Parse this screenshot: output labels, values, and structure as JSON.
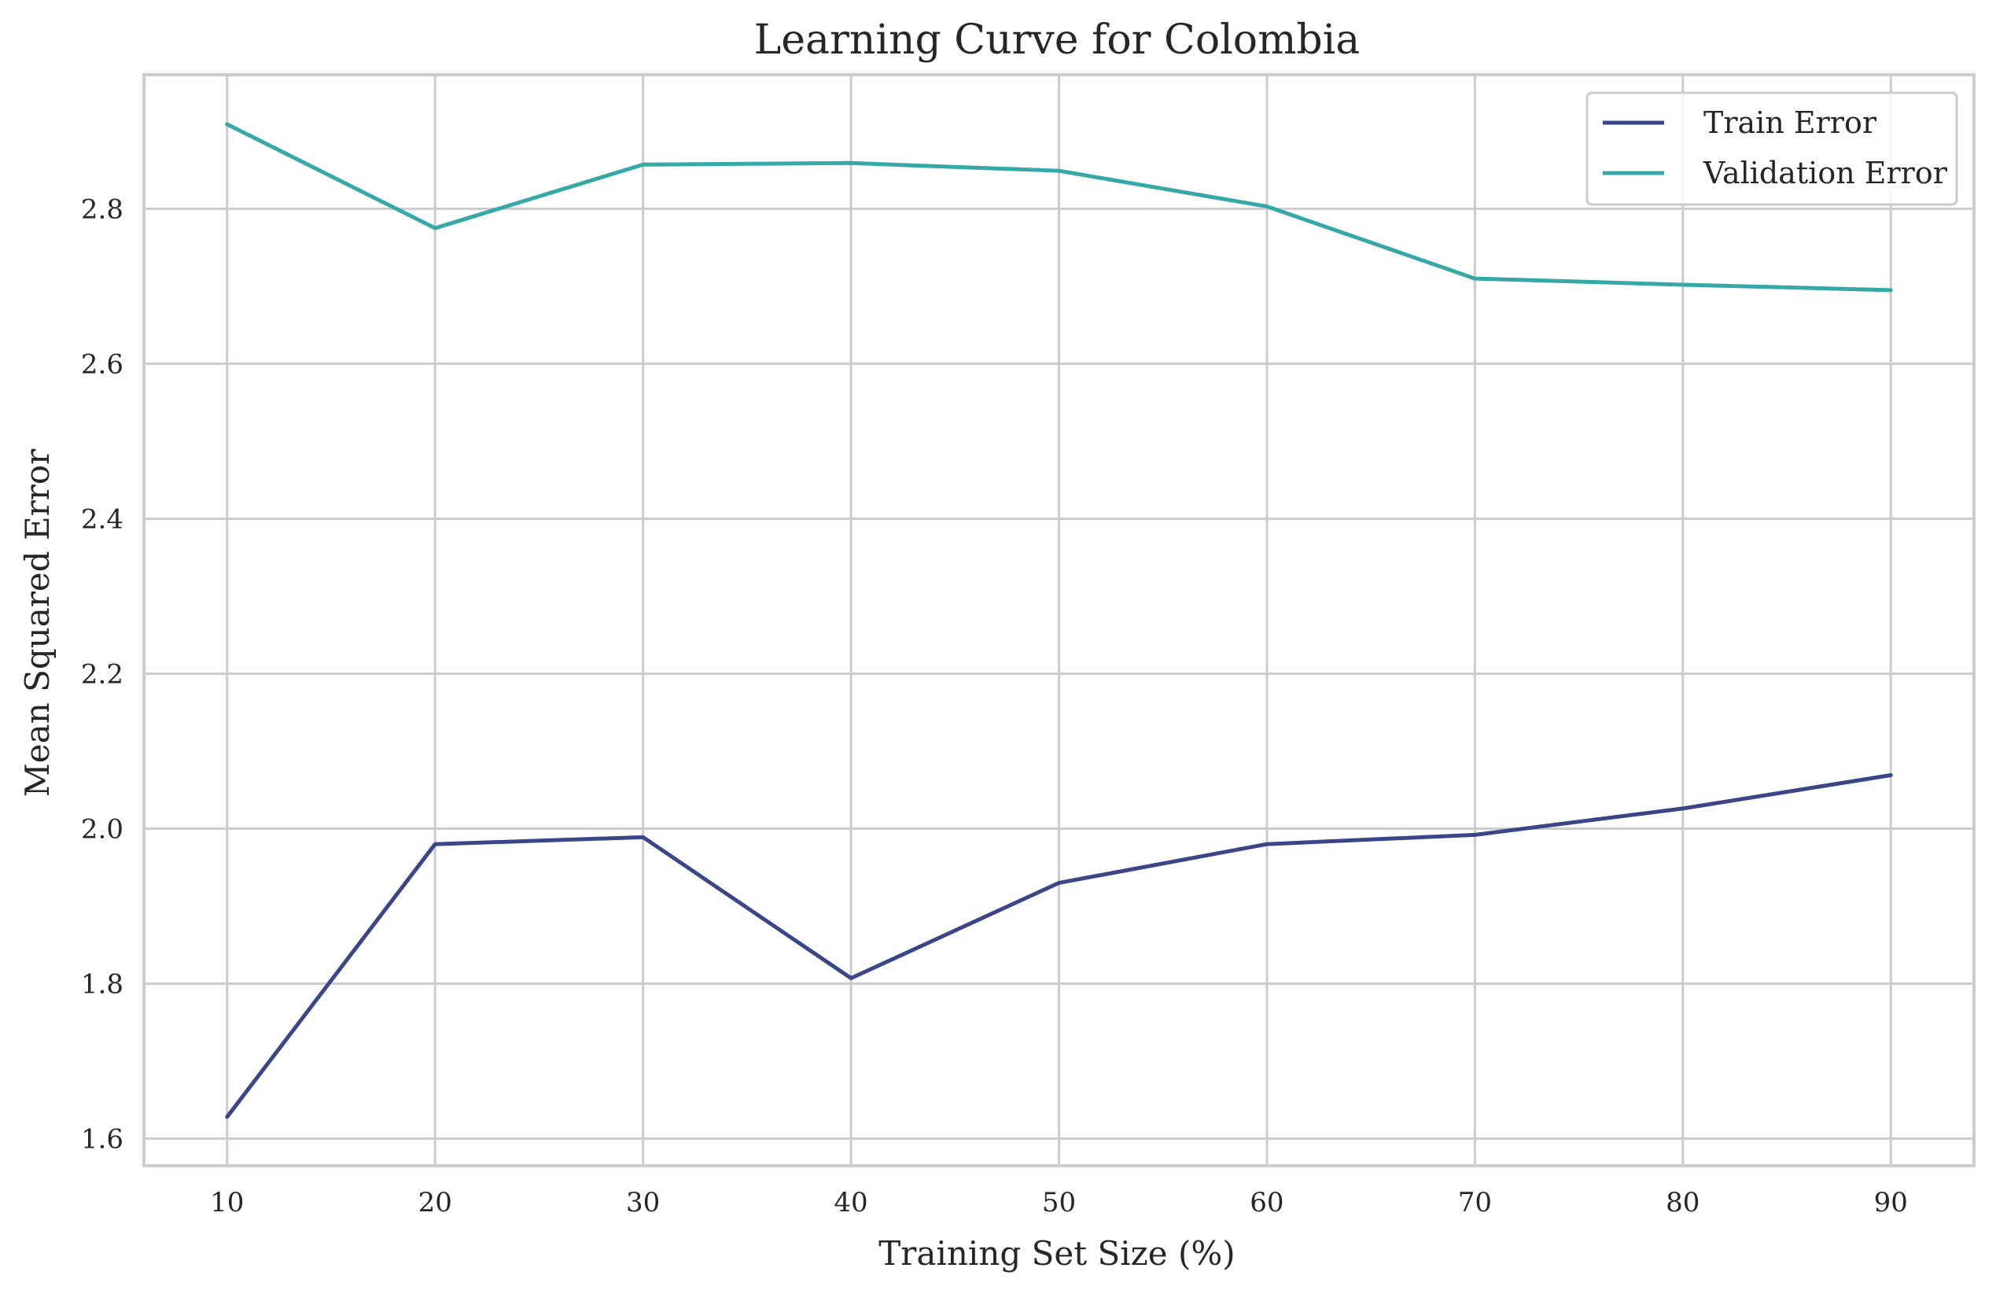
{
  "chart_data": {
    "type": "line",
    "title": "Learning Curve for Colombia",
    "xlabel": "Training Set Size (%)",
    "ylabel": "Mean Squared Error",
    "x": [
      10,
      20,
      30,
      40,
      50,
      60,
      70,
      80,
      90
    ],
    "x_ticks": [
      "10",
      "20",
      "30",
      "40",
      "50",
      "60",
      "70",
      "80",
      "90"
    ],
    "y_ticks": [
      "1.6",
      "1.8",
      "2.0",
      "2.2",
      "2.4",
      "2.6",
      "2.8"
    ],
    "xlim": [
      6,
      94
    ],
    "ylim": [
      1.565,
      2.973
    ],
    "grid": true,
    "legend_position": "top-right",
    "series": [
      {
        "name": "Train Error",
        "color": "#3b4689",
        "values": [
          1.628,
          1.98,
          1.989,
          1.807,
          1.93,
          1.98,
          1.992,
          2.026,
          2.069
        ]
      },
      {
        "name": "Validation Error",
        "color": "#35a8a7",
        "values": [
          2.909,
          2.775,
          2.857,
          2.859,
          2.849,
          2.803,
          2.71,
          2.702,
          2.695
        ]
      }
    ]
  }
}
